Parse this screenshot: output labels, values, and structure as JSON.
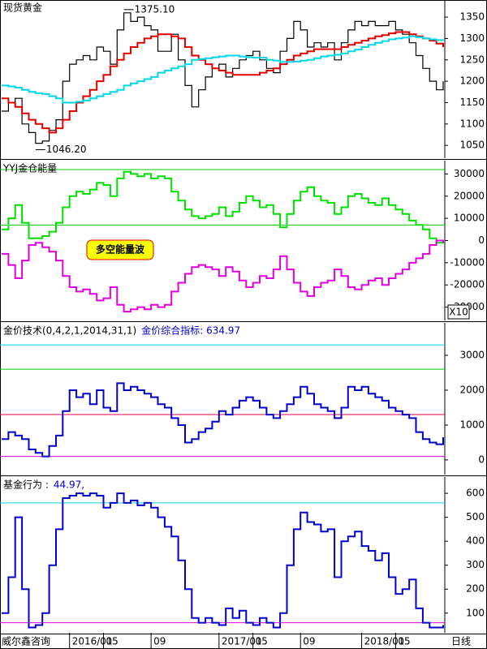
{
  "chart_data": [
    {
      "type": "line",
      "title": "现货黄金",
      "ylim": [
        1020,
        1390
      ],
      "yticks": [
        1050,
        1100,
        1150,
        1200,
        1250,
        1300,
        1350
      ],
      "annotations": [
        {
          "text": "1375.10",
          "index": 18
        },
        {
          "text": "1046.20",
          "index": 5
        }
      ],
      "series": [
        {
          "color": "#000000",
          "values": [
            1130,
            1150,
            1160,
            1100,
            1080,
            1055,
            1060,
            1085,
            1110,
            1200,
            1240,
            1250,
            1260,
            1250,
            1280,
            1270,
            1240,
            1320,
            1360,
            1340,
            1350,
            1330,
            1320,
            1270,
            1270,
            1310,
            1250,
            1190,
            1140,
            1180,
            1210,
            1230,
            1240,
            1210,
            1230,
            1250,
            1260,
            1270,
            1250,
            1230,
            1220,
            1270,
            1300,
            1340,
            1320,
            1280,
            1290,
            1280,
            1290,
            1250,
            1290,
            1320,
            1340,
            1330,
            1340,
            1330,
            1330,
            1340,
            1320,
            1310,
            1290,
            1260,
            1230,
            1200,
            1180,
            1200
          ]
        },
        {
          "color": "#e00000",
          "values": [
            1160,
            1150,
            1140,
            1125,
            1110,
            1100,
            1090,
            1080,
            1090,
            1110,
            1130,
            1150,
            1165,
            1180,
            1200,
            1215,
            1235,
            1250,
            1265,
            1280,
            1290,
            1300,
            1305,
            1310,
            1310,
            1305,
            1300,
            1280,
            1260,
            1250,
            1240,
            1230,
            1225,
            1220,
            1215,
            1215,
            1215,
            1215,
            1220,
            1225,
            1230,
            1240,
            1250,
            1260,
            1265,
            1270,
            1275,
            1275,
            1275,
            1275,
            1280,
            1285,
            1290,
            1295,
            1300,
            1305,
            1308,
            1312,
            1315,
            1315,
            1310,
            1305,
            1300,
            1295,
            1288,
            1280
          ]
        },
        {
          "color": "#00d8e8",
          "values": [
            1190,
            1188,
            1185,
            1180,
            1175,
            1172,
            1170,
            1165,
            1160,
            1150,
            1150,
            1152,
            1155,
            1160,
            1165,
            1170,
            1175,
            1180,
            1190,
            1195,
            1200,
            1205,
            1210,
            1220,
            1225,
            1230,
            1235,
            1240,
            1250,
            1252,
            1254,
            1256,
            1258,
            1260,
            1260,
            1258,
            1256,
            1255,
            1255,
            1250,
            1248,
            1245,
            1245,
            1246,
            1248,
            1250,
            1254,
            1258,
            1260,
            1262,
            1265,
            1270,
            1274,
            1280,
            1285,
            1290,
            1294,
            1298,
            1300,
            1302,
            1305,
            1303,
            1300,
            1298,
            1296,
            1295
          ]
        }
      ]
    },
    {
      "type": "line",
      "title": "YYJ金仓能量",
      "label": "多空能量波",
      "scale_label": "X10",
      "ylim": [
        -36000,
        36000
      ],
      "yticks": [
        -30000,
        -20000,
        -10000,
        0,
        10000,
        20000,
        30000
      ],
      "ref_lines": [
        {
          "value": 32000,
          "color": "#00cc00"
        },
        {
          "value": 7000,
          "color": "#00cc00"
        }
      ],
      "series": [
        {
          "color": "#00e000",
          "values": [
            5000,
            10000,
            16000,
            8000,
            1000,
            1000,
            2000,
            4000,
            8000,
            15000,
            20000,
            22000,
            21000,
            23000,
            26000,
            25000,
            20000,
            28000,
            31000,
            30000,
            29000,
            30000,
            28000,
            29000,
            28000,
            22000,
            18000,
            14000,
            11000,
            10000,
            11000,
            12000,
            15000,
            11000,
            13000,
            17000,
            20000,
            18000,
            15000,
            16000,
            12000,
            6000,
            12000,
            18000,
            22000,
            24000,
            20000,
            18000,
            17000,
            12000,
            15000,
            20000,
            21000,
            19000,
            17000,
            16000,
            19000,
            16000,
            14000,
            12000,
            9000,
            7000,
            5000,
            1000,
            -1000,
            0
          ]
        },
        {
          "color": "#e000e0",
          "values": [
            -6000,
            -11000,
            -17000,
            -9000,
            -2000,
            -1000,
            -3000,
            -5000,
            -9000,
            -16000,
            -21000,
            -23000,
            -22000,
            -24000,
            -27000,
            -26000,
            -21000,
            -29000,
            -32000,
            -31000,
            -30000,
            -31000,
            -29000,
            -30000,
            -29000,
            -23000,
            -19000,
            -15000,
            -12000,
            -11000,
            -12000,
            -13000,
            -16000,
            -12000,
            -14000,
            -18000,
            -21000,
            -19000,
            -16000,
            -17000,
            -13000,
            -7000,
            -13000,
            -19000,
            -23000,
            -25000,
            -21000,
            -19000,
            -18000,
            -13000,
            -16000,
            -21000,
            -22000,
            -20000,
            -18000,
            -17000,
            -20000,
            -17000,
            -15000,
            -13000,
            -10000,
            -8000,
            -6000,
            -2000,
            0,
            -1000
          ]
        }
      ]
    },
    {
      "type": "line",
      "title": "金价技术(0,4,2,1,2014,31,1)",
      "indicator": "金价综合指标: 634.97",
      "ylim": [
        -420,
        3930
      ],
      "yticks": [
        0,
        1000,
        2000,
        3000
      ],
      "ref_lines": [
        {
          "value": 3300,
          "color": "#00d8e8"
        },
        {
          "value": 2600,
          "color": "#00cc00"
        },
        {
          "value": 1300,
          "color": "#e00050"
        },
        {
          "value": 100,
          "color": "#e000e0"
        }
      ],
      "series": [
        {
          "color": "#0000cc",
          "values": [
            600,
            800,
            700,
            600,
            300,
            200,
            100,
            400,
            700,
            1400,
            2000,
            1800,
            1900,
            1600,
            2000,
            1500,
            1400,
            2200,
            2000,
            2100,
            2000,
            1900,
            1800,
            1600,
            1500,
            1200,
            1000,
            500,
            600,
            800,
            900,
            1100,
            1400,
            1300,
            1500,
            1700,
            1800,
            1700,
            1500,
            1300,
            1200,
            1400,
            1600,
            1800,
            2100,
            1900,
            1600,
            1500,
            1400,
            1200,
            1500,
            2100,
            2000,
            2100,
            1900,
            1800,
            1700,
            1500,
            1400,
            1300,
            1200,
            800,
            600,
            500,
            450,
            650
          ]
        }
      ]
    },
    {
      "type": "line",
      "title": "基金行为 :",
      "indicator": "44.97,",
      "ylim": [
        18,
        668
      ],
      "yticks": [
        100,
        200,
        300,
        400,
        500,
        600
      ],
      "ref_lines": [
        {
          "value": 560,
          "color": "#00d8e8"
        },
        {
          "value": 60,
          "color": "#e000e0"
        }
      ],
      "footer": "威尔鑫咨询",
      "period": "日线",
      "categories": [
        null,
        null,
        null,
        null,
        null,
        null,
        null,
        null,
        null,
        null,
        "2016/01",
        null,
        null,
        null,
        null,
        "05",
        null,
        null,
        null,
        null,
        null,
        null,
        "09",
        null,
        null,
        null,
        null,
        null,
        null,
        null,
        null,
        null,
        "2017/01",
        null,
        null,
        null,
        null,
        "05",
        null,
        null,
        null,
        null,
        null,
        null,
        "09",
        null,
        null,
        null,
        null,
        null,
        null,
        null,
        null,
        "2018/01",
        null,
        null,
        null,
        null,
        "05",
        null,
        null,
        null,
        null,
        null,
        null,
        null
      ],
      "series": [
        {
          "color": "#0000cc",
          "values": [
            100,
            250,
            500,
            200,
            40,
            50,
            100,
            300,
            450,
            580,
            590,
            600,
            590,
            600,
            590,
            540,
            560,
            600,
            560,
            570,
            550,
            560,
            540,
            500,
            460,
            420,
            320,
            200,
            80,
            60,
            80,
            60,
            50,
            120,
            80,
            110,
            60,
            50,
            80,
            60,
            40,
            100,
            300,
            450,
            520,
            480,
            470,
            440,
            450,
            250,
            400,
            420,
            440,
            380,
            360,
            320,
            350,
            250,
            180,
            200,
            240,
            120,
            60,
            40,
            40,
            50
          ]
        }
      ]
    }
  ]
}
